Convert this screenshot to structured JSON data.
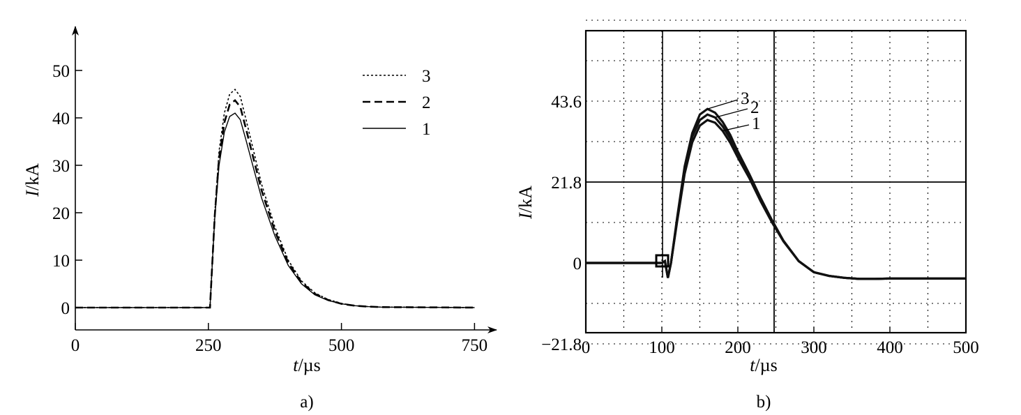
{
  "chart_data": [
    {
      "type": "line",
      "caption": "a)",
      "xlabel_var": "t",
      "xlabel_unit": "/µs",
      "ylabel_var": "I",
      "ylabel_unit": "/kA",
      "xlim": [
        0,
        775
      ],
      "ylim": [
        -4,
        55
      ],
      "xticks": [
        0,
        250,
        500,
        750
      ],
      "yticks": [
        0,
        10,
        20,
        30,
        40,
        50
      ],
      "grid": false,
      "legend_position": "top-right",
      "series": [
        {
          "name": "3",
          "style": "dotted",
          "x": [
            0,
            252,
            253,
            262,
            270,
            280,
            290,
            300,
            310,
            320,
            335,
            350,
            375,
            400,
            425,
            450,
            475,
            500,
            525,
            550,
            575,
            750
          ],
          "y": [
            0,
            0,
            0,
            20,
            33,
            41,
            45,
            46,
            44.5,
            40,
            33,
            26,
            17,
            10,
            5.6,
            3.1,
            1.7,
            0.9,
            0.4,
            0.2,
            0.1,
            0
          ]
        },
        {
          "name": "2",
          "style": "dashed",
          "x": [
            0,
            252,
            253,
            262,
            270,
            280,
            290,
            300,
            310,
            320,
            335,
            350,
            375,
            400,
            425,
            450,
            475,
            500,
            525,
            550,
            575,
            750
          ],
          "y": [
            0,
            0,
            0,
            19.5,
            31.5,
            39,
            42.8,
            43.7,
            42.3,
            38,
            31.3,
            24.7,
            16.1,
            9.5,
            5.3,
            2.9,
            1.6,
            0.8,
            0.4,
            0.2,
            0.1,
            0
          ]
        },
        {
          "name": "1",
          "style": "solid",
          "x": [
            0,
            252,
            253,
            262,
            270,
            280,
            290,
            300,
            310,
            320,
            335,
            350,
            375,
            400,
            425,
            450,
            475,
            500,
            525,
            550,
            575,
            750
          ],
          "y": [
            0,
            0,
            0,
            19,
            30,
            37,
            40.3,
            41,
            39.6,
            35.6,
            29.3,
            23.1,
            15.1,
            8.9,
            5,
            2.7,
            1.5,
            0.8,
            0.4,
            0.2,
            0.1,
            0
          ]
        }
      ]
    },
    {
      "type": "line",
      "caption": "b)",
      "xlabel_var": "t",
      "xlabel_unit": "/µs",
      "ylabel_var": "I",
      "ylabel_unit": "/kA",
      "xlim": [
        0,
        500
      ],
      "ylim": [
        -21.8,
        69
      ],
      "xticks": [
        0,
        100,
        200,
        300,
        400,
        500
      ],
      "yticks": [
        "−21.8",
        "0",
        "21.8",
        "43.6"
      ],
      "ytick_values": [
        -21.8,
        0,
        21.8,
        43.6
      ],
      "grid": true,
      "annotations": [
        "3",
        "2",
        "1"
      ],
      "series": [
        {
          "name": "3",
          "x": [
            0,
            100,
            104,
            108,
            112,
            120,
            130,
            140,
            150,
            160,
            170,
            180,
            190,
            200,
            215,
            230,
            245,
            260,
            280,
            300,
            320,
            340,
            360,
            380,
            400,
            450,
            500
          ],
          "y": [
            0,
            0,
            0.5,
            -4,
            0,
            12,
            26,
            35,
            40,
            41.5,
            40.5,
            38,
            34.5,
            30,
            24,
            17.5,
            11.5,
            6,
            0.5,
            -2.5,
            -3.5,
            -4,
            -4.3,
            -4.3,
            -4.2,
            -4.2,
            -4.2
          ]
        },
        {
          "name": "2",
          "x": [
            0,
            100,
            104,
            108,
            112,
            120,
            130,
            140,
            150,
            160,
            170,
            180,
            190,
            200,
            215,
            230,
            245,
            260,
            280,
            300,
            320,
            340,
            360,
            380,
            400,
            450,
            500
          ],
          "y": [
            0,
            0,
            0.5,
            -4,
            0,
            11.5,
            25,
            34,
            38.5,
            40,
            39.2,
            36.8,
            33.5,
            29.2,
            23.5,
            17,
            11.2,
            5.9,
            0.5,
            -2.5,
            -3.5,
            -4,
            -4.3,
            -4.3,
            -4.2,
            -4.2,
            -4.2
          ]
        },
        {
          "name": "1",
          "x": [
            0,
            100,
            104,
            108,
            112,
            120,
            130,
            140,
            150,
            160,
            170,
            180,
            190,
            200,
            215,
            230,
            245,
            260,
            280,
            300,
            320,
            340,
            360,
            380,
            400,
            450,
            500
          ],
          "y": [
            0,
            0,
            0.5,
            -4,
            0,
            11,
            24,
            32.5,
            37,
            38.5,
            37.8,
            35.6,
            32.4,
            28.4,
            22.9,
            16.6,
            10.9,
            5.8,
            0.5,
            -2.5,
            -3.5,
            -4,
            -4.3,
            -4.3,
            -4.2,
            -4.2,
            -4.2
          ]
        }
      ]
    }
  ]
}
